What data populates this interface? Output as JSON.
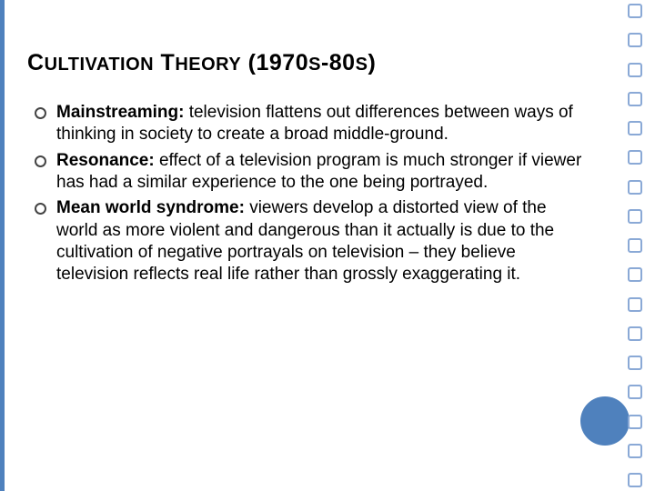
{
  "colors": {
    "accent": "#4f81bd",
    "square_border": "#8aa9d6",
    "text": "#000000",
    "bullet_border": "#444444",
    "background": "#ffffff"
  },
  "layout": {
    "left_bar_width": 5,
    "right_square_count": 17,
    "circle_diameter": 54
  },
  "title": {
    "main1": "C",
    "small1": "ULTIVATION",
    "main2": " T",
    "small2": "HEORY",
    "main3": " (1970",
    "small3": "S",
    "main4": "-80",
    "small4": "S",
    "main5": ")"
  },
  "bullets": [
    {
      "term": "Mainstreaming:",
      "text": " television flattens out differences between ways of thinking in society to create a broad middle-ground."
    },
    {
      "term": "Resonance:",
      "text": " effect of a television program is much stronger if viewer has had a similar experience to the one being portrayed."
    },
    {
      "term": "Mean world syndrome:",
      "text": " viewers develop a distorted view of the world as more violent and dangerous than it actually is due to the cultivation of negative portrayals on television – they believe television reflects real life rather than grossly exaggerating it."
    }
  ]
}
